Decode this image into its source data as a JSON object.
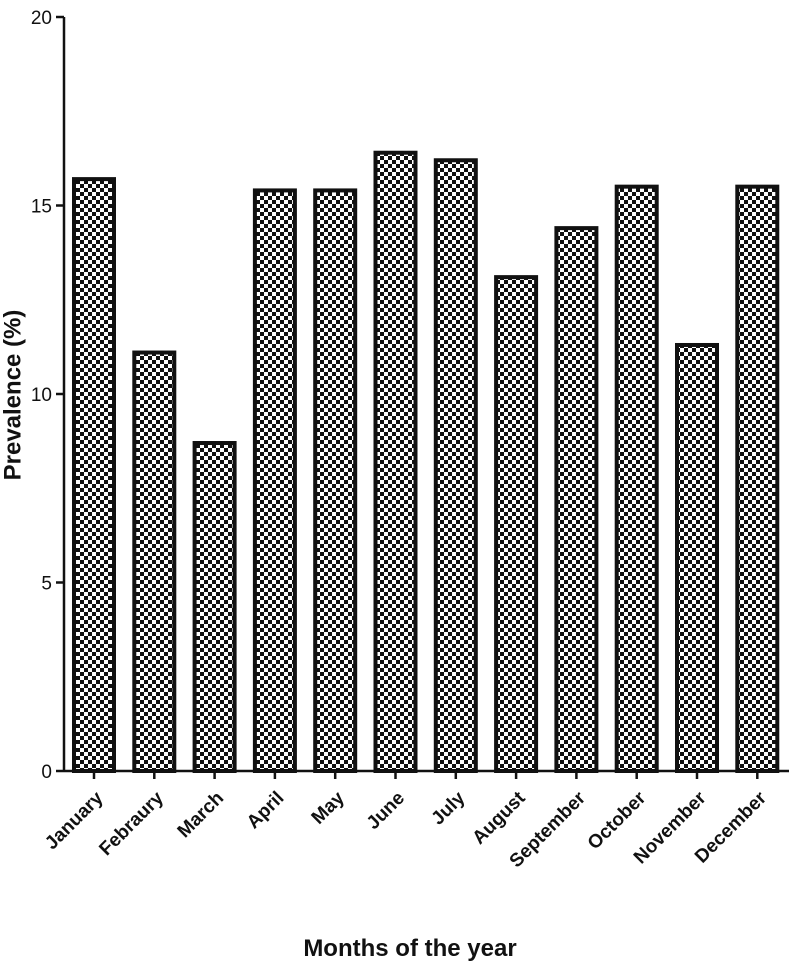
{
  "chart_data": {
    "type": "bar",
    "categories": [
      "January",
      "Febraury",
      "March",
      "April",
      "May",
      "June",
      "July",
      "August",
      "September",
      "October",
      "November",
      "December"
    ],
    "values": [
      15.7,
      11.1,
      8.7,
      15.4,
      15.4,
      16.4,
      16.2,
      13.1,
      14.4,
      15.5,
      11.3,
      15.5
    ],
    "xlabel": "Months of the year",
    "ylabel": "Prevalence (%)",
    "ylim": [
      0,
      20
    ],
    "yticks": [
      0,
      5,
      10,
      15,
      20
    ],
    "ytick_labels": [
      "0",
      "5",
      "10",
      "15",
      "20"
    ],
    "grid": false,
    "bar_fill": "checkerboard",
    "colors": {
      "bar_stroke": "#111111",
      "check_dark": "#111111",
      "check_light": "#ffffff"
    }
  }
}
